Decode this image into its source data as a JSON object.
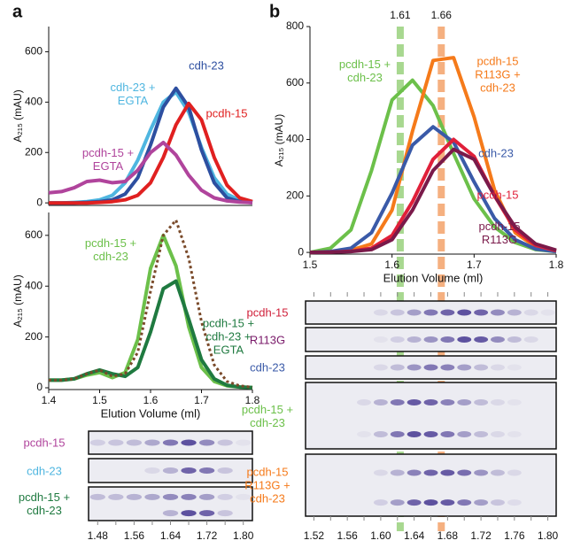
{
  "chart_data": [
    {
      "type": "line",
      "panel": "a",
      "ylabel": "A₂₁₅ (mAU)",
      "xlim": [
        1.4,
        1.8
      ],
      "ylim": [
        -10,
        700
      ],
      "yticks": [
        0,
        200,
        400,
        600
      ],
      "x": [
        1.4,
        1.425,
        1.45,
        1.475,
        1.5,
        1.525,
        1.55,
        1.575,
        1.6,
        1.625,
        1.65,
        1.675,
        1.7,
        1.725,
        1.75,
        1.775,
        1.8
      ],
      "series": [
        {
          "name": "cdh-23 + EGTA",
          "color": "#4fb6e0",
          "values": [
            0,
            0,
            2,
            5,
            12,
            30,
            80,
            170,
            290,
            400,
            440,
            360,
            220,
            100,
            35,
            10,
            3
          ]
        },
        {
          "name": "cdh-23",
          "color": "#2d4fa0",
          "values": [
            0,
            0,
            0,
            2,
            5,
            12,
            35,
            100,
            230,
            380,
            455,
            380,
            210,
            80,
            20,
            5,
            1
          ]
        },
        {
          "name": "pcdh-15",
          "color": "#e02020",
          "values": [
            0,
            0,
            0,
            0,
            2,
            5,
            12,
            30,
            80,
            180,
            310,
            395,
            330,
            180,
            70,
            20,
            5
          ]
        },
        {
          "name": "pcdh-15 + EGTA",
          "color": "#b0449c",
          "values": [
            40,
            45,
            60,
            85,
            90,
            80,
            85,
            130,
            200,
            240,
            190,
            110,
            50,
            20,
            8,
            3,
            1
          ]
        }
      ]
    },
    {
      "type": "line",
      "ylabel": "A₂₁₅ (mAU)",
      "xlabel": "Elution Volume (ml)",
      "xlim": [
        1.4,
        1.8
      ],
      "xticks": [
        1.4,
        1.5,
        1.6,
        1.7,
        1.8
      ],
      "ylim": [
        -7,
        690
      ],
      "yticks": [
        0,
        200,
        400,
        600
      ],
      "x": [
        1.4,
        1.425,
        1.45,
        1.475,
        1.5,
        1.525,
        1.55,
        1.575,
        1.6,
        1.625,
        1.65,
        1.675,
        1.7,
        1.725,
        1.75,
        1.775,
        1.8
      ],
      "series": [
        {
          "name": "pcdh-15 + cdh-23",
          "color": "#6cc04a",
          "values": [
            30,
            30,
            35,
            50,
            60,
            40,
            60,
            190,
            470,
            600,
            480,
            240,
            80,
            25,
            8,
            3,
            1
          ]
        },
        {
          "name": "pcdh-15 + cdh-23 + EGTA",
          "color": "#1f7a40",
          "values": [
            30,
            30,
            35,
            55,
            70,
            55,
            45,
            80,
            220,
            390,
            420,
            270,
            110,
            35,
            10,
            3,
            1
          ]
        },
        {
          "color": "#7a4a2a",
          "dashed": true,
          "values": [
            30,
            30,
            35,
            55,
            70,
            45,
            55,
            140,
            380,
            600,
            660,
            510,
            260,
            90,
            25,
            8,
            2
          ]
        }
      ]
    },
    {
      "type": "gel",
      "band_color": "#3a2a8a",
      "categories": [
        "1.48",
        null,
        "1.56",
        null,
        "1.64",
        null,
        "1.72",
        null,
        "1.80"
      ],
      "series": [
        {
          "name": "pcdh-15",
          "color": "#b0449c",
          "values": [
            15,
            20,
            25,
            35,
            60,
            80,
            50,
            20,
            5
          ]
        },
        {
          "name": "cdh-23",
          "color": "#4fb6e0",
          "values": [
            0,
            0,
            0,
            10,
            30,
            70,
            60,
            20,
            0
          ]
        },
        {
          "name": "pcdh-15 + cdh-23",
          "color": "#1f7a40",
          "values": [
            25,
            25,
            30,
            35,
            50,
            55,
            40,
            15,
            5
          ],
          "lower_values": [
            0,
            0,
            0,
            0,
            30,
            80,
            70,
            20,
            0
          ]
        }
      ]
    },
    {
      "type": "line",
      "panel": "b",
      "ylabel": "A₂₁₅ (mAU)",
      "xlabel": "Elution Volume (ml)",
      "xlim": [
        1.5,
        1.8
      ],
      "xticks": [
        1.5,
        1.6,
        1.7,
        1.8
      ],
      "ylim": [
        -6,
        800
      ],
      "yticks": [
        0,
        200,
        400,
        600,
        800
      ],
      "vlines": [
        {
          "value": 1.61,
          "color": "#a8d890"
        },
        {
          "value": 1.66,
          "color": "#f5b080"
        }
      ],
      "x": [
        1.5,
        1.525,
        1.55,
        1.575,
        1.6,
        1.625,
        1.65,
        1.675,
        1.7,
        1.725,
        1.75,
        1.775,
        1.8
      ],
      "series": [
        {
          "name": "pcdh-15 + cdh-23",
          "color": "#6cc04a",
          "values": [
            0,
            15,
            80,
            290,
            540,
            610,
            520,
            350,
            190,
            90,
            35,
            10,
            3
          ]
        },
        {
          "name": "pcdh-15 R113G + cdh-23",
          "color": "#f57a1a",
          "values": [
            0,
            2,
            8,
            30,
            150,
            430,
            680,
            690,
            480,
            220,
            70,
            20,
            5
          ]
        },
        {
          "name": "cdh-23",
          "color": "#3a5aa8",
          "values": [
            0,
            3,
            15,
            70,
            210,
            380,
            445,
            390,
            250,
            120,
            45,
            12,
            3
          ]
        },
        {
          "name": "pcdh-15",
          "color": "#e0203a",
          "values": [
            0,
            1,
            4,
            15,
            60,
            180,
            330,
            400,
            340,
            200,
            80,
            25,
            6
          ]
        },
        {
          "name": "pcdh-15 R113G",
          "color": "#7a1a4a",
          "values": [
            0,
            1,
            3,
            10,
            45,
            150,
            290,
            365,
            330,
            200,
            90,
            30,
            8
          ]
        }
      ]
    },
    {
      "type": "gel",
      "band_color": "#3a2a8a",
      "categories": [
        "1.52",
        null,
        "1.56",
        null,
        "1.60",
        null,
        "1.64",
        null,
        "1.68",
        null,
        "1.72",
        null,
        "1.76",
        null,
        "1.80"
      ],
      "series": [
        {
          "name": "pcdh-15",
          "color": "#d0203a",
          "values": [
            0,
            0,
            0,
            0,
            10,
            20,
            40,
            60,
            70,
            80,
            70,
            50,
            30,
            10,
            5
          ]
        },
        {
          "name": "R113G",
          "color": "#7a1a6a",
          "values": [
            0,
            0,
            0,
            0,
            5,
            15,
            30,
            45,
            60,
            80,
            75,
            50,
            25,
            10,
            0
          ]
        },
        {
          "name": "cdh-23",
          "color": "#3a5aa8",
          "values": [
            0,
            0,
            0,
            0,
            10,
            25,
            45,
            60,
            55,
            40,
            25,
            10,
            5,
            0,
            0
          ]
        },
        {
          "name": "pcdh-15 + cdh-23",
          "color": "#6cc04a",
          "values": [
            0,
            0,
            0,
            10,
            30,
            60,
            75,
            70,
            55,
            40,
            25,
            10,
            5,
            0,
            0
          ],
          "lower_values": [
            0,
            0,
            0,
            5,
            25,
            60,
            80,
            75,
            60,
            40,
            25,
            10,
            5,
            0,
            0
          ]
        },
        {
          "name": "pcdh-15 R113G + cdh-23",
          "color": "#f57a1a",
          "values": [
            0,
            0,
            0,
            0,
            10,
            30,
            55,
            70,
            75,
            65,
            45,
            25,
            10,
            0,
            0
          ],
          "lower_values": [
            0,
            0,
            0,
            0,
            15,
            40,
            70,
            80,
            75,
            60,
            40,
            20,
            8,
            0,
            0
          ]
        }
      ]
    }
  ]
}
